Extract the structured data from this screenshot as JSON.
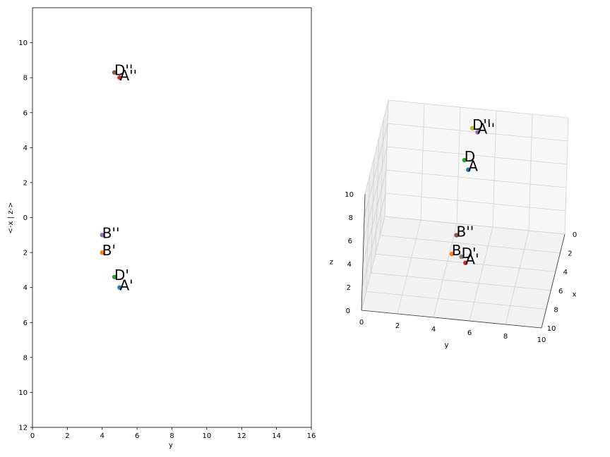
{
  "chart_data": [
    {
      "type": "scatter",
      "xlabel": "y",
      "ylabel": "<-x | z->",
      "xlim": [
        0,
        16
      ],
      "ylim": [
        -12,
        12
      ],
      "xticks": [
        0,
        2,
        4,
        6,
        8,
        10,
        12,
        14,
        16
      ],
      "yticks": [
        {
          "value": -12,
          "label": "12"
        },
        {
          "value": -10,
          "label": "10"
        },
        {
          "value": -8,
          "label": "8"
        },
        {
          "value": -6,
          "label": "6"
        },
        {
          "value": -4,
          "label": "4"
        },
        {
          "value": -2,
          "label": "2"
        },
        0,
        2,
        4,
        6,
        8,
        10
      ],
      "series": [
        {
          "name": "D''",
          "color": "#8c564b",
          "x": [
            4.7
          ],
          "y": [
            8.3
          ]
        },
        {
          "name": "A''",
          "color": "#d62728",
          "x": [
            5
          ],
          "y": [
            8
          ]
        },
        {
          "name": "B''",
          "color": "#9467bd",
          "x": [
            4
          ],
          "y": [
            -1
          ]
        },
        {
          "name": "B'",
          "color": "#ff7f0e",
          "x": [
            4
          ],
          "y": [
            -2
          ]
        },
        {
          "name": "D'",
          "color": "#2ca02c",
          "x": [
            4.7
          ],
          "y": [
            -3.4
          ]
        },
        {
          "name": "A'",
          "color": "#1f77b4",
          "x": [
            5
          ],
          "y": [
            -4
          ]
        }
      ]
    },
    {
      "type": "scatter3d",
      "xlabel": "x",
      "ylabel": "y",
      "zlabel": "z",
      "xlim": [
        0,
        10
      ],
      "ylim": [
        0,
        10
      ],
      "zlim": [
        0,
        10
      ],
      "xticks": [
        0,
        2,
        4,
        6,
        8,
        10
      ],
      "yticks": [
        0,
        2,
        4,
        6,
        8,
        10
      ],
      "zticks": [
        0,
        2,
        4,
        6,
        8,
        10
      ],
      "series": [
        {
          "name": "D''",
          "color": "#bcbd22",
          "x": [
            0
          ],
          "y": [
            4.7
          ],
          "z": [
            8.3
          ]
        },
        {
          "name": "A''",
          "color": "#9467bd",
          "x": [
            0
          ],
          "y": [
            5
          ],
          "z": [
            8
          ]
        },
        {
          "name": "D",
          "color": "#2ca02c",
          "x": [
            3.4
          ],
          "y": [
            4.7
          ],
          "z": [
            8.3
          ]
        },
        {
          "name": "A",
          "color": "#1f77b4",
          "x": [
            4
          ],
          "y": [
            5
          ],
          "z": [
            8
          ]
        },
        {
          "name": "B''",
          "color": "#8c564b",
          "x": [
            0
          ],
          "y": [
            4
          ],
          "z": [
            -1
          ]
        },
        {
          "name": "B",
          "color": "#ff7f0e",
          "x": [
            2
          ],
          "y": [
            4
          ],
          "z": [
            -1
          ]
        },
        {
          "name": "D'",
          "color": "#7f7f7f",
          "x": [
            3.4
          ],
          "y": [
            4.7
          ],
          "z": [
            0
          ]
        },
        {
          "name": "A'",
          "color": "#d62728",
          "x": [
            4
          ],
          "y": [
            5
          ],
          "z": [
            0
          ]
        }
      ]
    }
  ]
}
